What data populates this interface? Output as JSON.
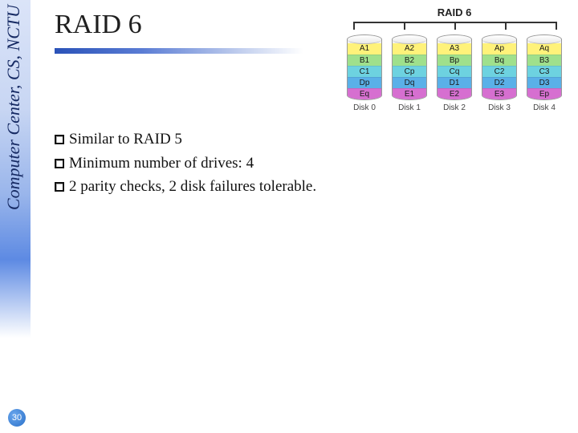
{
  "sidebar": {
    "label": "Computer Center, CS, NCTU",
    "text_color": "#162a63"
  },
  "page_number": 30,
  "title": "RAID 6",
  "bullets": [
    "Similar to RAID 5",
    "Minimum number of drives: 4",
    "2 parity checks, 2 disk failures tolerable."
  ],
  "diagram": {
    "title": "RAID 6",
    "title_fontsize": 13,
    "stripe_font": "Arial",
    "stripe_fontsize": 10,
    "row_colors": [
      "#fff27a",
      "#9fe08c",
      "#6dd2e0",
      "#5ab0e8",
      "#d66fd0"
    ],
    "data_text_color": "#1a1a1a",
    "parity_text_color": "#1a1a1a",
    "disks": [
      {
        "label": "Disk 0",
        "cells": [
          {
            "t": "A1",
            "p": false
          },
          {
            "t": "B1",
            "p": false
          },
          {
            "t": "C1",
            "p": false
          },
          {
            "t": "Dp",
            "p": true
          },
          {
            "t": "Eq",
            "p": true
          }
        ]
      },
      {
        "label": "Disk 1",
        "cells": [
          {
            "t": "A2",
            "p": false
          },
          {
            "t": "B2",
            "p": false
          },
          {
            "t": "Cp",
            "p": true
          },
          {
            "t": "Dq",
            "p": true
          },
          {
            "t": "E1",
            "p": false
          }
        ]
      },
      {
        "label": "Disk 2",
        "cells": [
          {
            "t": "A3",
            "p": false
          },
          {
            "t": "Bp",
            "p": true
          },
          {
            "t": "Cq",
            "p": true
          },
          {
            "t": "D1",
            "p": false
          },
          {
            "t": "E2",
            "p": false
          }
        ]
      },
      {
        "label": "Disk 3",
        "cells": [
          {
            "t": "Ap",
            "p": true
          },
          {
            "t": "Bq",
            "p": true
          },
          {
            "t": "C2",
            "p": false
          },
          {
            "t": "D2",
            "p": false
          },
          {
            "t": "E3",
            "p": false
          }
        ]
      },
      {
        "label": "Disk 4",
        "cells": [
          {
            "t": "Aq",
            "p": true
          },
          {
            "t": "B3",
            "p": false
          },
          {
            "t": "C3",
            "p": false
          },
          {
            "t": "D3",
            "p": false
          },
          {
            "t": "Ep",
            "p": true
          }
        ]
      }
    ]
  },
  "colors": {
    "title_underline_start": "#2a52b8",
    "title_underline_end": "#ffffff",
    "pagebadge_a": "#6aa7ee",
    "pagebadge_b": "#2a70c8"
  }
}
